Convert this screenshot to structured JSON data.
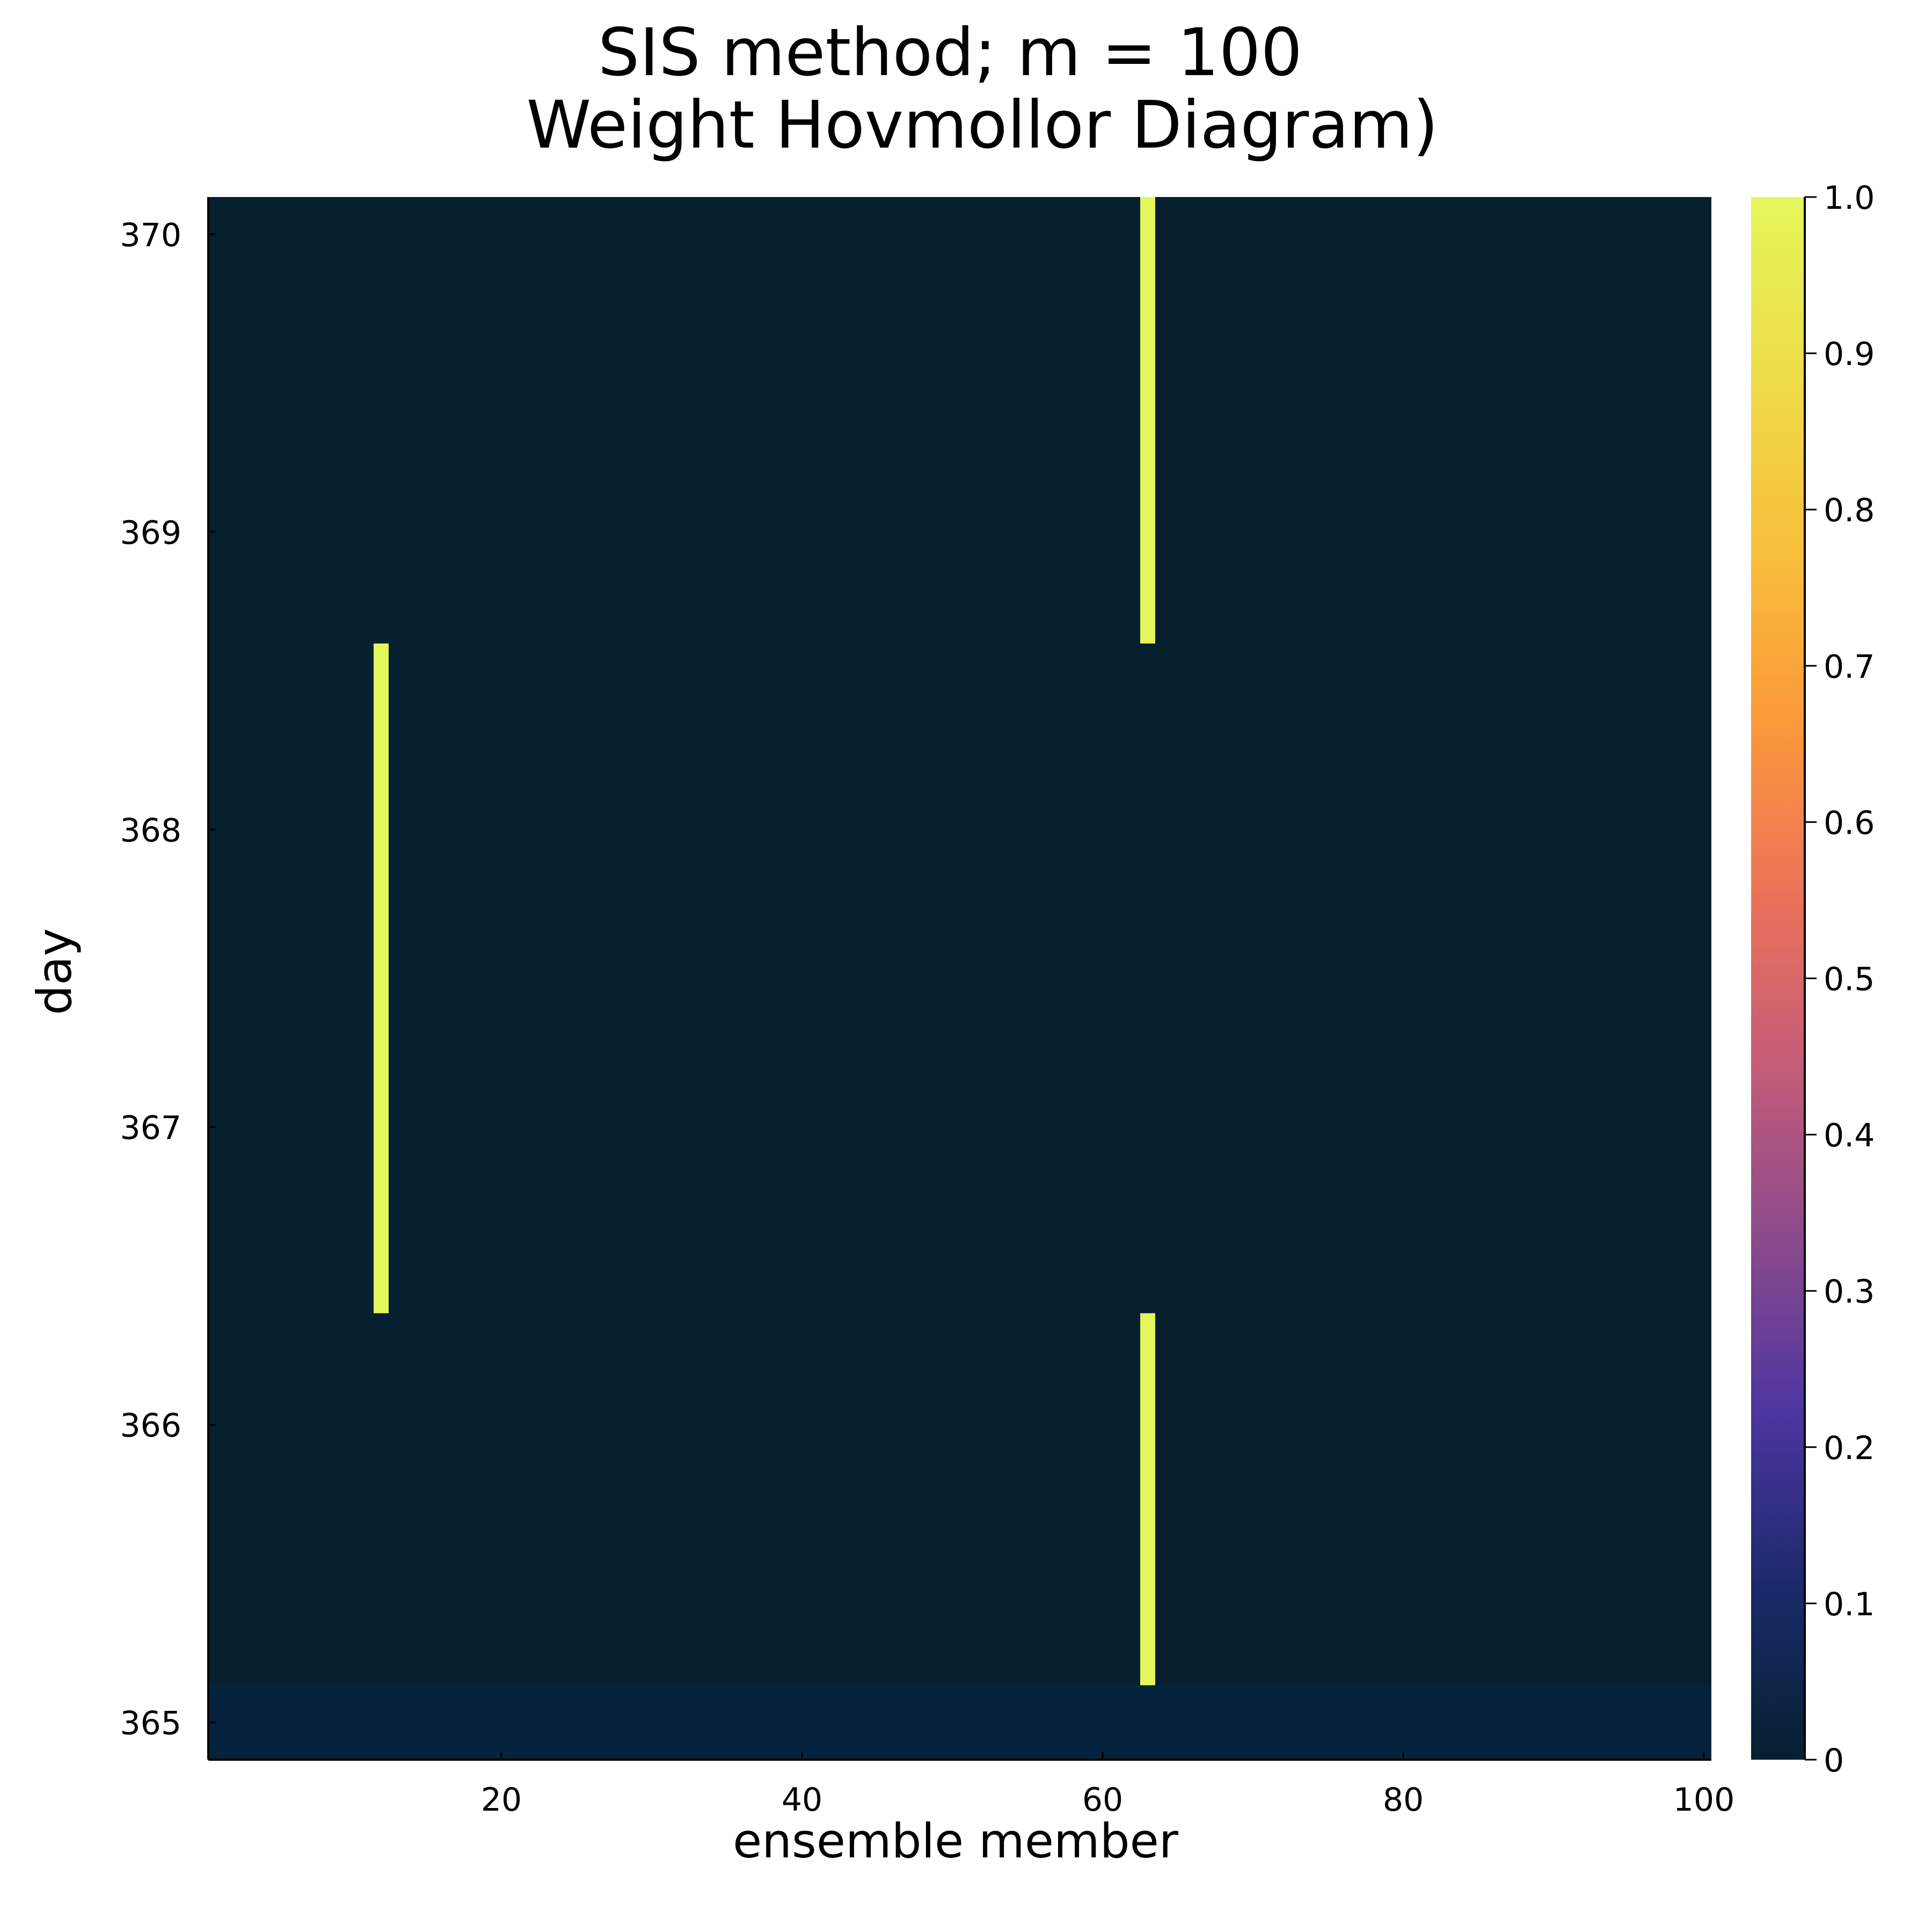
{
  "chart_data": {
    "type": "heatmap",
    "title": "SIS method; m = 100",
    "subtitle": "Weight Hovmollor Diagram)",
    "xlabel": "ensemble member",
    "ylabel": "day",
    "x_range": [
      1,
      100
    ],
    "y_range": [
      365,
      370
    ],
    "x_ticks": [
      20,
      40,
      60,
      80,
      100
    ],
    "y_ticks": [
      365,
      366,
      367,
      368,
      369,
      370
    ],
    "days": [
      365.0,
      365.25,
      365.5,
      365.75,
      366.0,
      366.25,
      366.5,
      366.75,
      367.0,
      367.25,
      367.5,
      367.75,
      368.0,
      368.25,
      368.5,
      368.75,
      369.0,
      369.25,
      369.5,
      369.75,
      370.0
    ],
    "background_weights": [
      {
        "day": 365.0,
        "weight": 0.01
      },
      {
        "day_from": 365.25,
        "day_to": 370.0,
        "weight": 0.0
      }
    ],
    "dominant_member": [
      {
        "day_from": 365.25,
        "day_to": 366.25,
        "member": 63,
        "weight": 1.0
      },
      {
        "day_from": 366.5,
        "day_to": 368.5,
        "member": 12,
        "weight": 1.0
      },
      {
        "day_from": 368.75,
        "day_to": 370.0,
        "member": 63,
        "weight": 1.0
      }
    ],
    "grid": false,
    "colorbar": {
      "label": "",
      "range": [
        0,
        1
      ],
      "ticks": [
        "0",
        "0.1",
        "0.2",
        "0.3",
        "0.4",
        "0.5",
        "0.6",
        "0.7",
        "0.8",
        "0.9",
        "1.0"
      ],
      "colors": [
        "#06202f",
        "#1b2a6b",
        "#4c35a0",
        "#8b4a8c",
        "#c45c78",
        "#ec7358",
        "#fb9a3a",
        "#f8c03c",
        "#eddd48",
        "#e4f75a"
      ]
    },
    "low_color": "#06202f",
    "day_365_color": "#06233e",
    "high_color": "#e4f75a"
  }
}
